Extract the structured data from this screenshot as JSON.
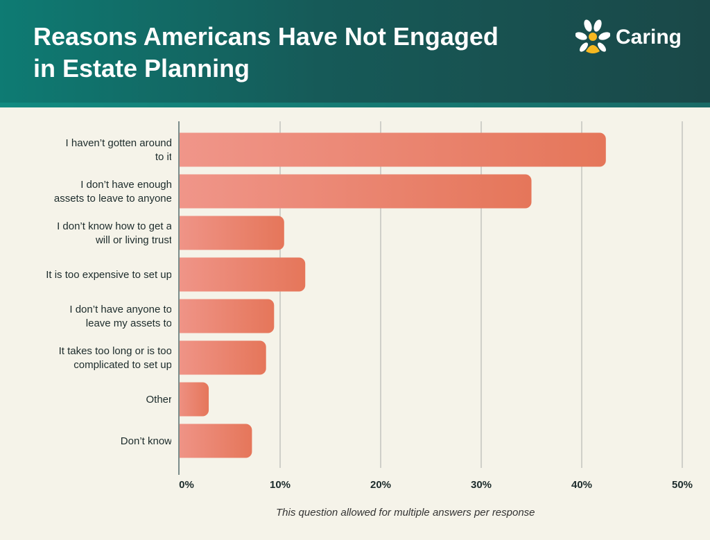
{
  "header": {
    "title": "Reasons Americans Have Not Engaged in Estate Planning",
    "logo_text": "Caring"
  },
  "footnote": "This question allowed for multiple answers per response",
  "colors": {
    "bar_start": "#f0968a",
    "bar_end": "#e5765a",
    "grid": "#cfcfc9",
    "axis": "#7a8c8a"
  },
  "chart_data": {
    "type": "bar",
    "orientation": "horizontal",
    "title": "Reasons Americans Have Not Engaged in Estate Planning",
    "categories": [
      [
        "I haven’t gotten around",
        "to it"
      ],
      [
        "I don’t have enough",
        "assets to leave to anyone"
      ],
      [
        "I don’t know how to get a",
        "will or living trust"
      ],
      [
        "It is too expensive to set up"
      ],
      [
        "I don’t have anyone to",
        "leave my assets to"
      ],
      [
        "It takes too long or is too",
        "complicated to set up"
      ],
      [
        "Other"
      ],
      [
        "Don’t know"
      ]
    ],
    "values": [
      42.4,
      35,
      10.4,
      12.5,
      9.4,
      8.6,
      2.9,
      7.2
    ],
    "xlim": [
      0,
      50
    ],
    "xticks": [
      0,
      10,
      20,
      30,
      40,
      50
    ],
    "xtick_labels": [
      "0%",
      "10%",
      "20%",
      "30%",
      "40%",
      "50%"
    ],
    "grid": true,
    "xlabel": "",
    "ylabel": ""
  }
}
